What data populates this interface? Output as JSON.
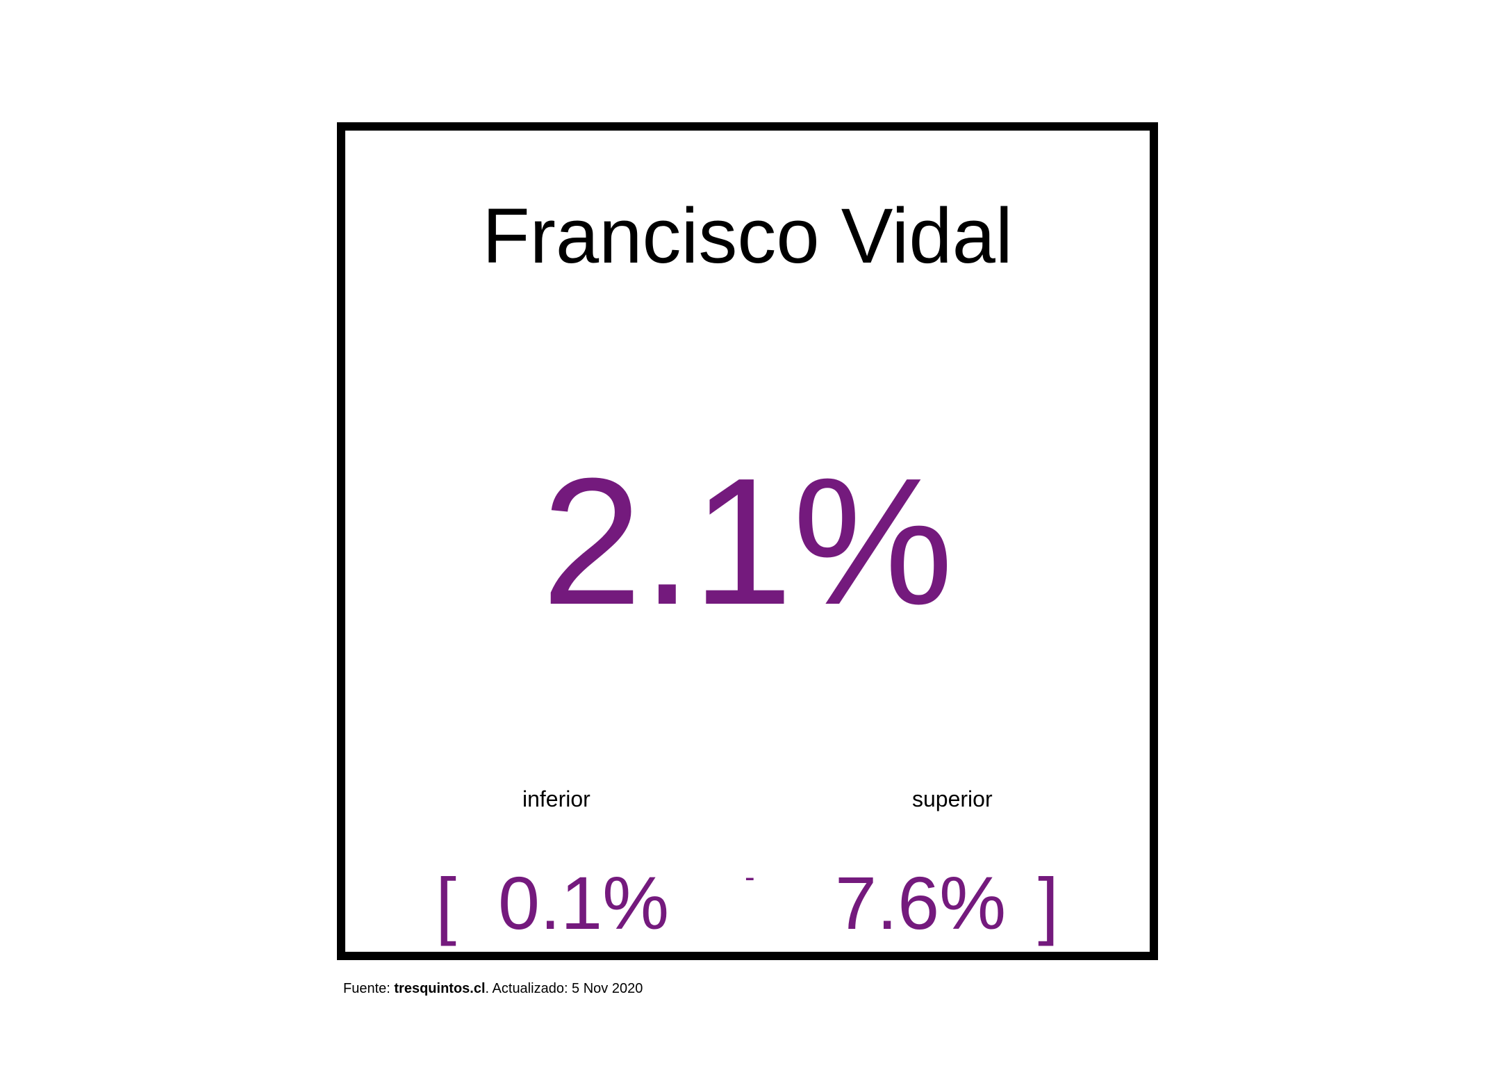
{
  "card": {
    "name": "Francisco Vidal",
    "value": "2.1%",
    "lower_label": "inferior",
    "upper_label": "superior",
    "bracket_open": "[",
    "lower_value": "0.1%",
    "separator": "-",
    "upper_value": "7.6%",
    "bracket_close": "]"
  },
  "footer": {
    "prefix": "Fuente: ",
    "source": "tresquintos.cl",
    "suffix": ". Actualizado: 5 Nov 2020"
  },
  "colors": {
    "accent": "#741a7d",
    "text": "#000000",
    "border": "#000000"
  }
}
